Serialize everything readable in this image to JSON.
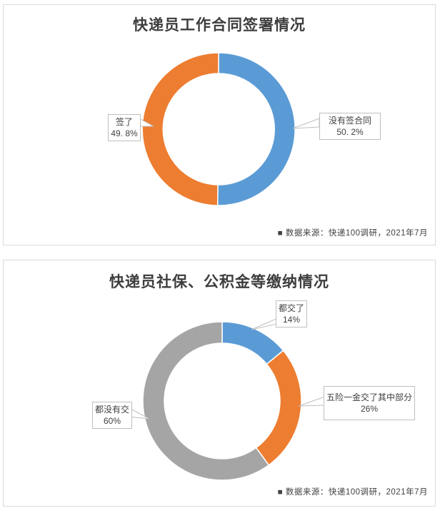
{
  "chart_data": [
    {
      "type": "pie",
      "subtype": "donut",
      "title": "快递员工作合同签署情况",
      "source": "■ 数据来源：快递100调研，2021年7月",
      "legend_position": "none",
      "start_angle_deg": 0,
      "direction": "clockwise",
      "categories": [
        "没有签合同",
        "签了"
      ],
      "values": [
        50.2,
        49.8
      ],
      "colors": [
        "#5B9BD5",
        "#ED7D31"
      ],
      "labels": [
        {
          "name": "没有签合同",
          "value_text": "50. 2%"
        },
        {
          "name": "签了",
          "value_text": "49. 8%"
        }
      ]
    },
    {
      "type": "pie",
      "subtype": "donut",
      "title": "快递员社保、公积金等缴纳情况",
      "source": "■ 数据来源：快递100调研，2021年7月",
      "legend_position": "none",
      "start_angle_deg": 0,
      "direction": "clockwise",
      "categories": [
        "都交了",
        "五险一金交了其中部分",
        "都没有交"
      ],
      "values": [
        14,
        26,
        60
      ],
      "colors": [
        "#5B9BD5",
        "#ED7D31",
        "#A5A5A5"
      ],
      "labels": [
        {
          "name": "都交了",
          "value_text": "14%"
        },
        {
          "name": "五险一金交了其中部分",
          "value_text": "26%"
        },
        {
          "name": "都没有交",
          "value_text": "60%"
        }
      ]
    }
  ]
}
